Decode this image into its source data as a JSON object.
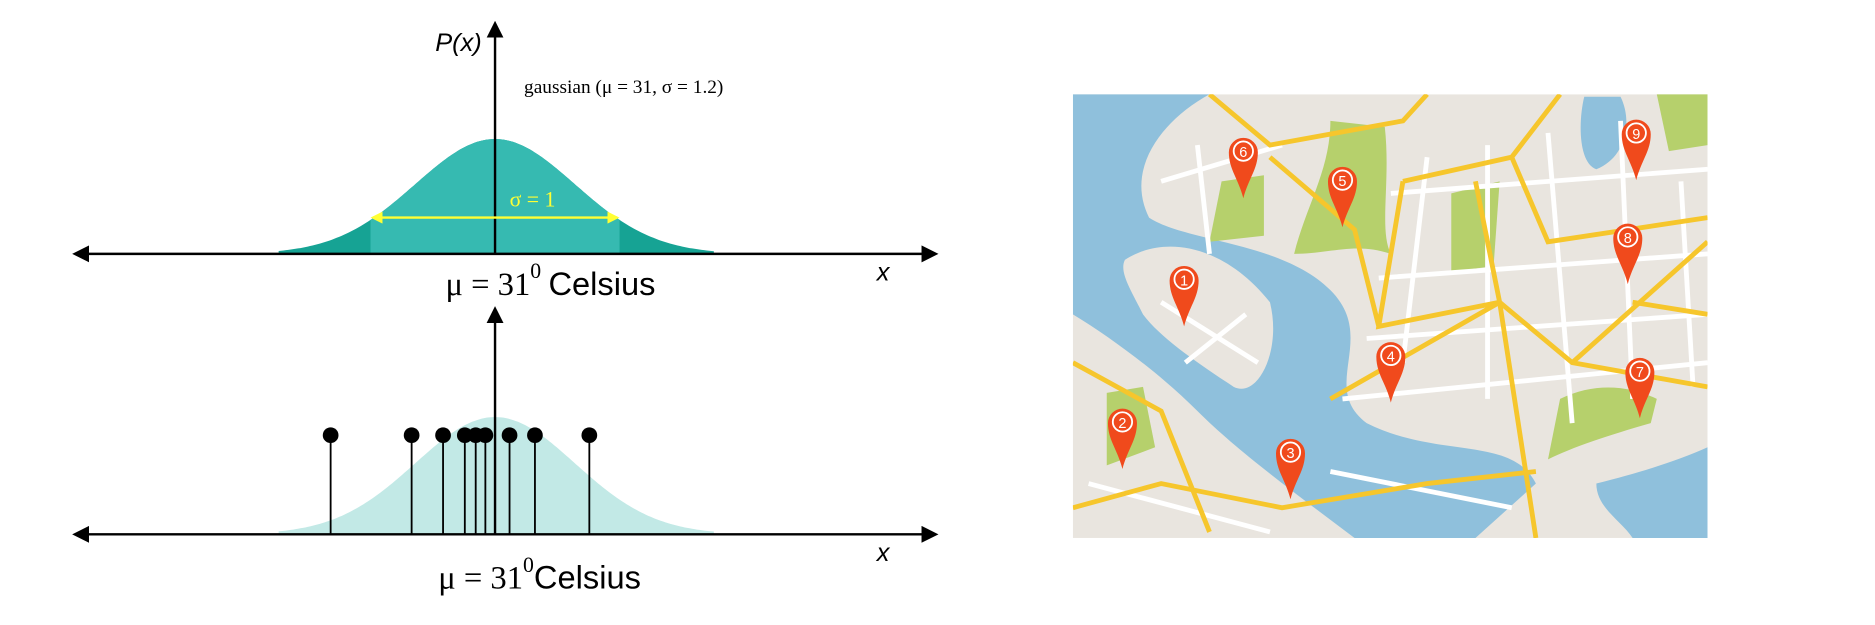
{
  "top_plot": {
    "y_label": "P(x)",
    "legend": "gaussian (μ = 31, σ = 1.2)",
    "sigma_label": "σ = 1",
    "x_label": "x",
    "mean_label": {
      "text": "μ = 31",
      "superscript": "0",
      "unit": "Celsius"
    }
  },
  "bottom_plot": {
    "x_label": "x",
    "mean_label": {
      "text": "μ = 31",
      "superscript": "0",
      "unit": "Celsius"
    }
  },
  "map": {
    "pins": [
      {
        "label": "1"
      },
      {
        "label": "2"
      },
      {
        "label": "3"
      },
      {
        "label": "4"
      },
      {
        "label": "5"
      },
      {
        "label": "6"
      },
      {
        "label": "7"
      },
      {
        "label": "8"
      },
      {
        "label": "9"
      }
    ]
  }
}
